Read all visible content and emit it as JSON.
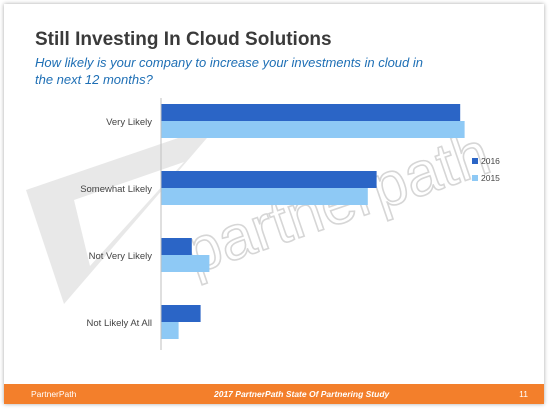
{
  "slide": {
    "title": "Still Investing In Cloud Solutions",
    "subtitle": "How likely is your company to increase your investments in cloud in the next 12 months?",
    "watermark": "partnerpath",
    "footer": {
      "brand": "PartnerPath",
      "study": "2017 PartnerPath State Of Partnering Study",
      "page": "11"
    }
  },
  "colors": {
    "accent": "#f37f2b",
    "series_2016": "#2b65c6",
    "series_2015": "#8ec9f5"
  },
  "chart_data": {
    "type": "bar",
    "orientation": "horizontal",
    "categories": [
      "Very Likely",
      "Somewhat Likely",
      "Not Very Likely",
      "Not Likely At All"
    ],
    "series": [
      {
        "name": "2016",
        "values": [
          68,
          49,
          7,
          9
        ]
      },
      {
        "name": "2015",
        "values": [
          69,
          47,
          11,
          4
        ]
      }
    ],
    "xlim": [
      0,
      70
    ],
    "grid": false,
    "legend": "right"
  }
}
